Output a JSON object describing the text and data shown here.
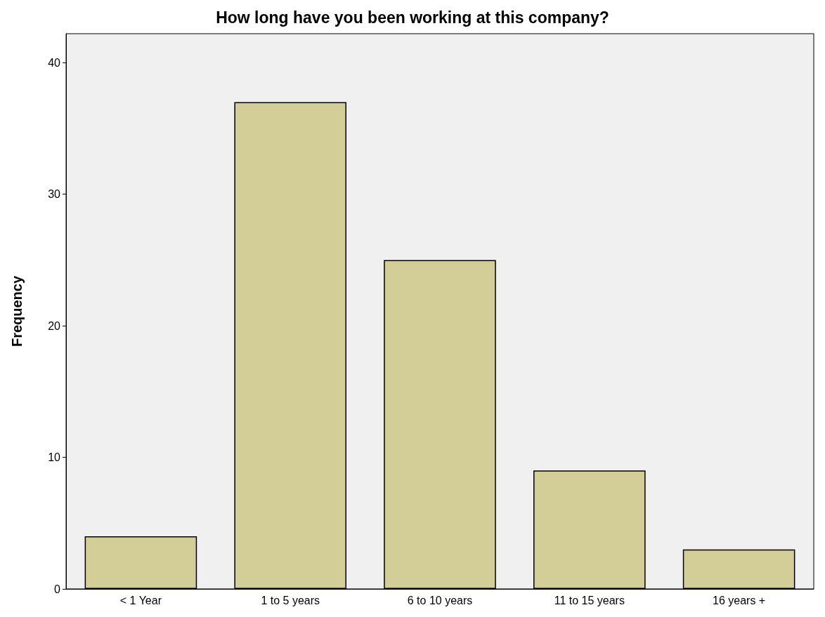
{
  "chart_data": {
    "type": "bar",
    "title": "How long have you been working at this company?",
    "ylabel": "Frequency",
    "categories": [
      "< 1 Year",
      "1 to 5 years",
      "6 to 10 years",
      "11 to 15 years",
      "16 years +"
    ],
    "values": [
      4,
      37,
      25,
      9,
      3
    ],
    "color": "#d3ce97",
    "ylim": [
      0,
      42.2
    ],
    "yticks": [
      0,
      10,
      20,
      30,
      40
    ],
    "grid": false
  }
}
